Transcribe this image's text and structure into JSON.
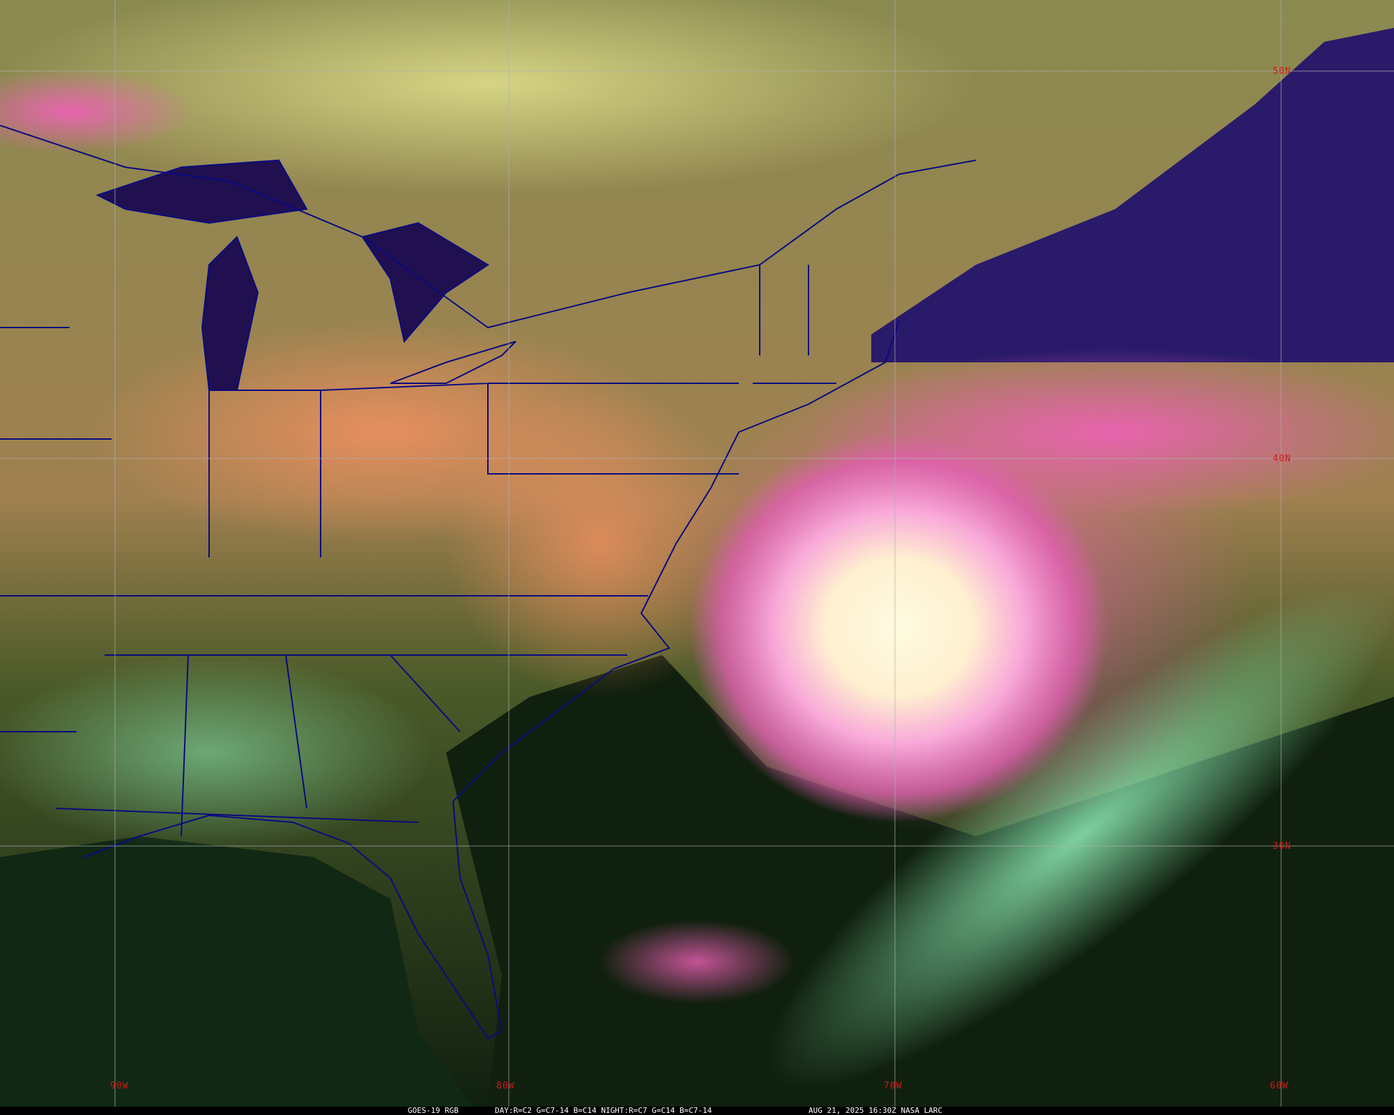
{
  "caption": {
    "product": "GOES-19 RGB",
    "recipe": "DAY:R=C2 G=C7-14 B=C14 NIGHT:R=C7 G=C14 B=C7-14",
    "timestamp": "AUG 21, 2025 16:30Z NASA LARC"
  },
  "grid": {
    "latitudes": [
      "50N",
      "40N",
      "30N"
    ],
    "longitudes": [
      "90W",
      "80W",
      "70W",
      "60W"
    ]
  },
  "colors": {
    "boundaries": "#0a0a80",
    "grid": "#b0b0b0",
    "grid_labels": "#d01818",
    "ocean": "#2a1a6a",
    "hurricane_core": "#fff8d8",
    "high_cloud": "#f060b8",
    "low_cloud": "#90f0b0"
  }
}
